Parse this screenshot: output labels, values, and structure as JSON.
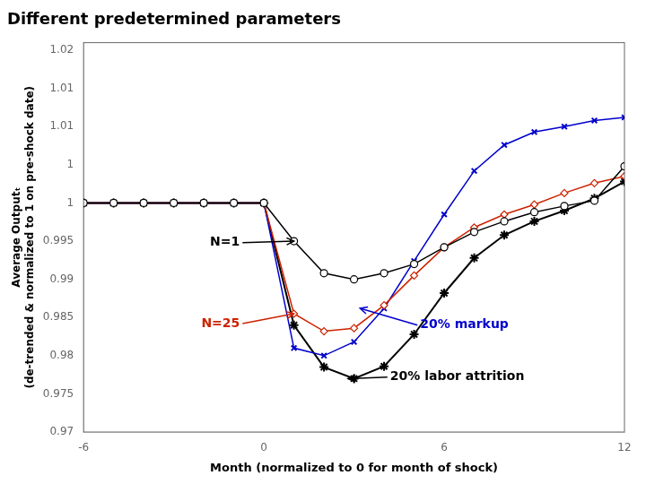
{
  "chart_data": {
    "type": "line",
    "title": "Different predetermined parameters",
    "xlabel": "Month (normalized to 0 for month of shock)",
    "ylabel": "Average Outputₜ\n(de-trended & normalized to 1 on pre-shock date)",
    "xlim": [
      -6,
      12
    ],
    "ylim": [
      0.97,
      1.021
    ],
    "xticks": [
      -6,
      0,
      6,
      12
    ],
    "yticks": [
      0.97,
      0.975,
      0.98,
      0.985,
      0.99,
      0.995,
      1,
      {
        "value": 1.005,
        "label": "1"
      },
      1.01,
      {
        "value": 1.015,
        "label": "1.01"
      },
      1.02
    ],
    "grid": false,
    "x": [
      -6,
      -5,
      -4,
      -3,
      -2,
      -1,
      0,
      1,
      2,
      3,
      4,
      5,
      6,
      7,
      8,
      9,
      10,
      11,
      12
    ],
    "series": [
      {
        "name": "N=1",
        "color": "#000000",
        "marker": "circle",
        "values": [
          1.0,
          1.0,
          1.0,
          1.0,
          1.0,
          1.0,
          1.0,
          0.995,
          0.9908,
          0.99,
          0.9908,
          0.992,
          0.9942,
          0.9962,
          0.9976,
          0.9988,
          0.9996,
          1.0003,
          1.0048
        ]
      },
      {
        "name": "N=25",
        "color": "#cc2200",
        "marker": "diamond",
        "values": [
          1.0,
          1.0,
          1.0,
          1.0,
          1.0,
          1.0,
          1.0,
          0.9855,
          0.9832,
          0.9836,
          0.9866,
          0.9905,
          0.9942,
          0.9968,
          0.9985,
          0.9998,
          1.0013,
          1.0026,
          1.0035
        ]
      },
      {
        "name": "20% markup",
        "color": "#0000cc",
        "marker": "x",
        "values": [
          1.0,
          1.0,
          1.0,
          1.0,
          1.0,
          1.0,
          1.0,
          0.981,
          0.98,
          0.9818,
          0.9862,
          0.9924,
          0.9985,
          1.0042,
          1.0076,
          1.0093,
          1.01,
          1.0108,
          1.0112
        ]
      },
      {
        "name": "20% labor attrition",
        "color": "#000000",
        "marker": "star",
        "values": [
          1.0,
          1.0,
          1.0,
          1.0,
          1.0,
          1.0,
          1.0,
          0.984,
          0.9785,
          0.977,
          0.9786,
          0.9828,
          0.9882,
          0.9928,
          0.9958,
          0.9976,
          0.999,
          1.0006,
          1.0028
        ]
      }
    ],
    "annotations": [
      {
        "text": "N=1",
        "x": 1,
        "y": 0.995,
        "text_x": -0.8,
        "text_y": 0.9948,
        "color": "#000000"
      },
      {
        "text": "N=25",
        "x": 1.0,
        "y": 0.9855,
        "text_x": -0.8,
        "text_y": 0.9842,
        "color": "#cc2200"
      },
      {
        "text": "20% markup",
        "x": 3.2,
        "y": 0.9862,
        "text_x": 5.2,
        "text_y": 0.984,
        "color": "#0000cc"
      },
      {
        "text": "20% labor attrition",
        "x": 2.8,
        "y": 0.977,
        "text_x": 4.2,
        "text_y": 0.9772,
        "color": "#000000"
      }
    ]
  }
}
